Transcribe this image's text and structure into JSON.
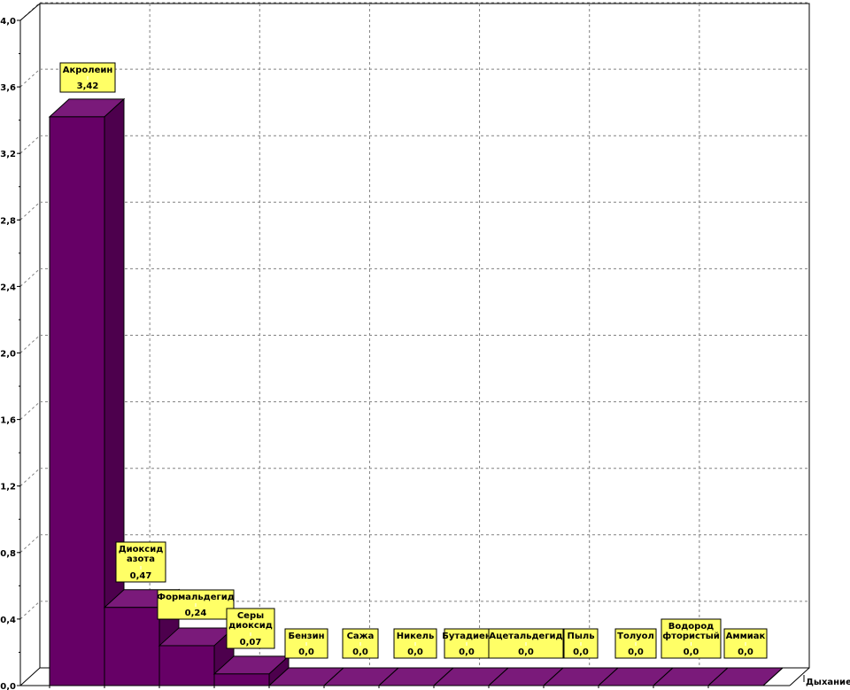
{
  "chart_data": {
    "type": "bar",
    "series": [
      {
        "name": "Дыхание",
        "values": [
          3.42,
          0.47,
          0.24,
          0.07,
          0.0,
          0.0,
          0.0,
          0.0,
          0.0,
          0.0,
          0.0,
          0.0,
          0.0
        ]
      }
    ],
    "categories": [
      "Акролеин",
      "Диоксид азота",
      "Формальдегид",
      "Серы диоксид",
      "Бензин",
      "Сажа",
      "Никель",
      "Бутадиен",
      "Ацетальдегид",
      "Пыль",
      "Толуол",
      "Водород фтористый",
      "Аммиак"
    ],
    "category_lines": [
      [
        "Акролеин"
      ],
      [
        "Диоксид",
        "азота"
      ],
      [
        "Формальдегид"
      ],
      [
        "Серы",
        "диоксид"
      ],
      [
        "Бензин"
      ],
      [
        "Сажа"
      ],
      [
        "Никель"
      ],
      [
        "Бутадиен"
      ],
      [
        "Ацетальдегид"
      ],
      [
        "Пыль"
      ],
      [
        "Толуол"
      ],
      [
        "Водород",
        "фтористый"
      ],
      [
        "Аммиак"
      ]
    ],
    "value_labels": [
      "3,42",
      "0,47",
      "0,24",
      "0,07",
      "0,0",
      "0,0",
      "0,0",
      "0,0",
      "0,0",
      "0,0",
      "0,0",
      "0,0",
      "0,0"
    ],
    "y_ticks": [
      "0,0",
      "0,4",
      "0,8",
      "1,2",
      "1,6",
      "2,0",
      "2,4",
      "2,8",
      "3,2",
      "3,6",
      "4,0"
    ],
    "ylim": [
      0,
      4.0
    ],
    "ytick_step": 0.2,
    "grid": true,
    "legend": "none",
    "colors": {
      "bar": "#660066",
      "bar_top": "#7a1a7a",
      "bar_side": "#4d004d",
      "callout_fill": "#ffff66",
      "grid": "#808080"
    }
  }
}
